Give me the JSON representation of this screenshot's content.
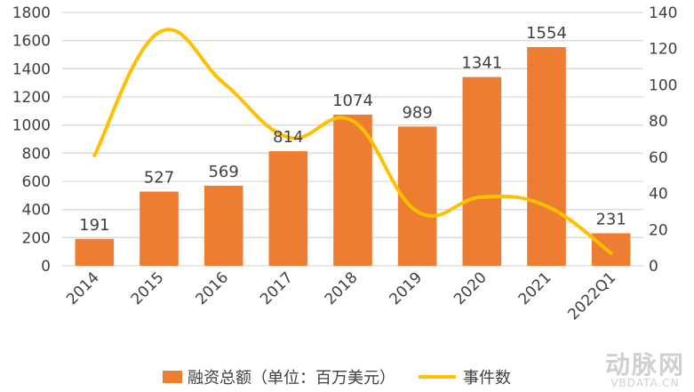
{
  "chart_data": {
    "type": "bar+line",
    "categories": [
      "2014",
      "2015",
      "2016",
      "2017",
      "2018",
      "2019",
      "2020",
      "2021",
      "2022Q1"
    ],
    "series": [
      {
        "name": "融资总额（单位：百万美元）",
        "type": "bar",
        "axis": "left",
        "color": "#ed7d31",
        "values": [
          191,
          527,
          569,
          814,
          1074,
          989,
          1341,
          1554,
          231
        ]
      },
      {
        "name": "事件数",
        "type": "line",
        "axis": "right",
        "color": "#ffc000",
        "smooth": true,
        "values": [
          61,
          129,
          101,
          71,
          80,
          30,
          38,
          33,
          7
        ]
      }
    ],
    "y_left": {
      "min": 0,
      "max": 1800,
      "step": 200,
      "ticks": [
        "0",
        "200",
        "400",
        "600",
        "800",
        "1000",
        "1200",
        "1400",
        "1600",
        "1800"
      ]
    },
    "y_right": {
      "min": 0,
      "max": 140,
      "step": 20,
      "ticks": [
        "0",
        "20",
        "40",
        "60",
        "80",
        "100",
        "120",
        "140"
      ]
    },
    "grid": true,
    "legend": "bottom",
    "bar_data_labels": true
  },
  "watermark": {
    "logo": "动脉网",
    "sub": "VBDATA.CN"
  }
}
